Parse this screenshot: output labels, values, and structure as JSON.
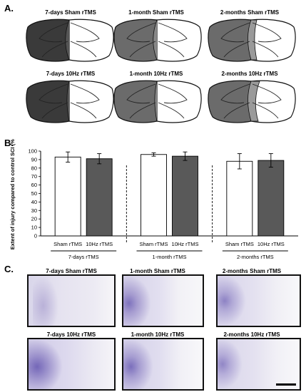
{
  "panels": {
    "a": {
      "label": "A.",
      "captions": [
        "7-days Sham rTMS",
        "1-month Sham rTMS",
        "2-months Sham rTMS",
        "7-days 10Hz rTMS",
        "1-month 10Hz rTMS",
        "2-months 10Hz rTMS"
      ]
    },
    "b": {
      "label": "B."
    },
    "c": {
      "label": "C.",
      "captions": [
        "7-days Sham rTMS",
        "1-month Sham rTMS",
        "2-months Sham rTMS",
        "7-days 10Hz rTMS",
        "1-month 10Hz rTMS",
        "2-months 10Hz rTMS"
      ]
    }
  },
  "chart_data": {
    "type": "bar",
    "ylabel": "Extent of injury compared to control SCI (%)",
    "ylim": [
      0,
      100
    ],
    "yticks": [
      0,
      10,
      20,
      30,
      40,
      50,
      60,
      70,
      80,
      90,
      100
    ],
    "groups": [
      {
        "label": "7-days rTMS",
        "bars": [
          {
            "label": "Sham rTMS",
            "value": 93,
            "error": 6,
            "color": "#ffffff"
          },
          {
            "label": "10Hz rTMS",
            "value": 91,
            "error": 6,
            "color": "#595959"
          }
        ]
      },
      {
        "label": "1-month rTMS",
        "bars": [
          {
            "label": "Sham rTMS",
            "value": 96,
            "error": 2,
            "color": "#ffffff"
          },
          {
            "label": "10Hz rTMS",
            "value": 94,
            "error": 5,
            "color": "#595959"
          }
        ]
      },
      {
        "label": "2-months rTMS",
        "bars": [
          {
            "label": "Sham rTMS",
            "value": 88,
            "error": 9,
            "color": "#ffffff"
          },
          {
            "label": "10Hz rTMS",
            "value": 89,
            "error": 8,
            "color": "#595959"
          }
        ]
      }
    ],
    "grid": false
  }
}
